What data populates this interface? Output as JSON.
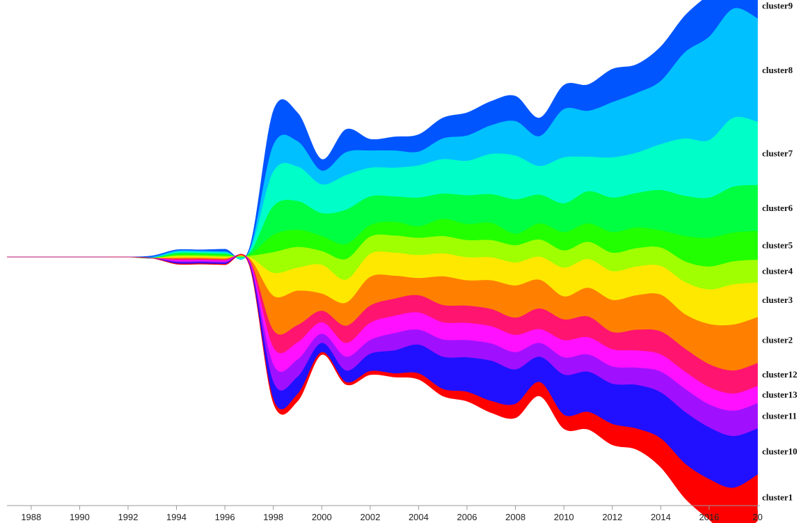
{
  "chart_data": {
    "type": "area",
    "subtype": "streamgraph",
    "title": "",
    "xlabel": "",
    "ylabel": "",
    "x": [
      1987,
      1988,
      1989,
      1990,
      1991,
      1992,
      1993,
      1994,
      1995,
      1996,
      1997,
      1998,
      1999,
      2000,
      2001,
      2002,
      2003,
      2004,
      2005,
      2006,
      2007,
      2008,
      2009,
      2010,
      2011,
      2012,
      2013,
      2014,
      2015,
      2016,
      2017,
      2018
    ],
    "xlim": [
      1987,
      2018.1
    ],
    "xtick_labels": [
      "1988",
      "1990",
      "1992",
      "1994",
      "1996",
      "1998",
      "2000",
      "2002",
      "2004",
      "2006",
      "2008",
      "2010",
      "2012",
      "2014",
      "2016",
      "20"
    ],
    "grid": false,
    "legend": "right-edge labels",
    "series": [
      {
        "name": "cluster9",
        "color": "#0055ff",
        "values": [
          0,
          0,
          0,
          0,
          0,
          0,
          0.1,
          0.1,
          0.1,
          0.2,
          0.2,
          3.0,
          2.5,
          1.0,
          2.0,
          1.0,
          1.2,
          1.5,
          1.8,
          2.0,
          2.1,
          2.2,
          1.6,
          2.1,
          2.3,
          2.9,
          2.5,
          3.0,
          3.2,
          3.7,
          3.0,
          2.2
        ]
      },
      {
        "name": "cluster8",
        "color": "#00c0ff",
        "values": [
          0,
          0,
          0,
          0,
          0,
          0,
          0.1,
          0.1,
          0.1,
          0.1,
          0.1,
          2.3,
          2.2,
          1.2,
          2.0,
          1.5,
          1.5,
          1.2,
          1.8,
          2.2,
          2.5,
          3.0,
          2.6,
          4.2,
          4.0,
          4.8,
          5.2,
          5.5,
          7.5,
          9.0,
          9.5,
          9.0
        ]
      },
      {
        "name": "cluster7",
        "color": "#00ffc8",
        "values": [
          0,
          0,
          0,
          0,
          0,
          0,
          0,
          0.1,
          0.1,
          0.1,
          0.1,
          3.0,
          3.0,
          2.5,
          3.0,
          2.5,
          2.5,
          2.8,
          3.0,
          3.0,
          3.5,
          3.8,
          2.5,
          4.0,
          3.0,
          3.5,
          3.5,
          4.0,
          5.0,
          5.0,
          6.0,
          5.5
        ]
      },
      {
        "name": "cluster6",
        "color": "#00ff40",
        "values": [
          0,
          0,
          0,
          0,
          0,
          0,
          0,
          0.1,
          0.1,
          0.1,
          0.1,
          2.5,
          2.5,
          2.0,
          3.0,
          2.5,
          2.2,
          2.5,
          2.2,
          2.5,
          2.5,
          3.0,
          2.5,
          2.5,
          2.8,
          3.0,
          3.0,
          3.5,
          3.5,
          3.5,
          4.0,
          4.0
        ]
      },
      {
        "name": "cluster5",
        "color": "#22ff00",
        "values": [
          0,
          0,
          0,
          0,
          0,
          0,
          0,
          0.1,
          0.1,
          0.1,
          0.1,
          1.5,
          1.5,
          1.3,
          1.3,
          1.0,
          1.2,
          1.0,
          1.5,
          1.4,
          1.5,
          1.0,
          1.4,
          1.6,
          1.6,
          1.8,
          1.8,
          1.5,
          2.2,
          2.5,
          2.5,
          2.5
        ]
      },
      {
        "name": "cluster4",
        "color": "#a0ff00",
        "values": [
          0,
          0,
          0,
          0,
          0,
          0,
          0,
          0.1,
          0.1,
          0.1,
          0.1,
          1.8,
          1.8,
          1.2,
          1.8,
          1.5,
          1.5,
          1.5,
          1.5,
          1.5,
          1.5,
          1.5,
          1.5,
          1.5,
          1.5,
          1.6,
          1.6,
          1.6,
          1.8,
          2.0,
          2.0,
          2.0
        ]
      },
      {
        "name": "cluster3",
        "color": "#ffe800",
        "values": [
          0,
          0,
          0,
          0,
          0,
          0,
          0,
          0.1,
          0.1,
          0.1,
          0.1,
          2.0,
          2.0,
          2.5,
          2.0,
          2.0,
          2.0,
          2.0,
          2.0,
          2.0,
          2.0,
          2.0,
          2.0,
          2.5,
          2.5,
          2.5,
          2.5,
          2.5,
          2.8,
          3.0,
          3.5,
          3.0
        ]
      },
      {
        "name": "cluster2",
        "color": "#ff8000",
        "values": [
          0,
          0,
          0,
          0,
          0,
          0,
          0,
          0.1,
          0.1,
          0.1,
          0.1,
          3.0,
          3.0,
          1.5,
          2.0,
          2.5,
          2.0,
          1.5,
          2.5,
          2.2,
          2.5,
          2.8,
          2.5,
          2.0,
          2.5,
          2.8,
          3.0,
          3.2,
          3.0,
          3.5,
          4.0,
          4.0
        ]
      },
      {
        "name": "cluster12",
        "color": "#ff1470",
        "values": [
          0,
          0,
          0,
          0,
          0,
          0,
          0,
          0.1,
          0.1,
          0.1,
          0.1,
          1.5,
          1.5,
          1.0,
          1.5,
          1.5,
          1.5,
          1.5,
          1.5,
          1.5,
          1.5,
          1.5,
          1.8,
          1.8,
          1.8,
          1.5,
          1.8,
          2.0,
          2.0,
          2.0,
          2.0,
          2.0
        ]
      },
      {
        "name": "cluster13",
        "color": "#ff10ff",
        "values": [
          0,
          0,
          0,
          0,
          0,
          0,
          0,
          0.1,
          0.1,
          0.1,
          0.1,
          1.5,
          1.5,
          1.0,
          1.2,
          1.5,
          1.5,
          1.5,
          1.5,
          1.5,
          1.5,
          1.5,
          1.2,
          1.5,
          1.5,
          1.5,
          1.5,
          1.5,
          1.5,
          1.5,
          1.5,
          1.5
        ]
      },
      {
        "name": "cluster11",
        "color": "#a010ff",
        "values": [
          0,
          0,
          0,
          0,
          0,
          0,
          0,
          0.1,
          0.1,
          0.1,
          0.1,
          1.5,
          1.5,
          0.8,
          1.2,
          1.2,
          1.5,
          1.3,
          1.5,
          1.5,
          1.5,
          1.5,
          1.2,
          1.5,
          1.5,
          1.5,
          1.5,
          1.8,
          2.0,
          2.0,
          2.2,
          2.2
        ]
      },
      {
        "name": "cluster10",
        "color": "#2010ff",
        "values": [
          0,
          0,
          0,
          0,
          0,
          0,
          0,
          0.1,
          0.1,
          0.1,
          0.1,
          1.5,
          1.5,
          0.8,
          1.0,
          1.5,
          2.0,
          2.5,
          2.8,
          3.0,
          3.5,
          3.0,
          2.2,
          3.5,
          3.5,
          3.5,
          3.8,
          4.0,
          4.5,
          4.5,
          4.5,
          4.0
        ]
      },
      {
        "name": "cluster1",
        "color": "#ff0000",
        "values": [
          0,
          0,
          0,
          0,
          0,
          0,
          0,
          0.05,
          0.05,
          0.05,
          0.05,
          0.3,
          0.6,
          0.2,
          0.2,
          0.3,
          0.3,
          0.5,
          0.6,
          0.8,
          1.0,
          1.2,
          1.2,
          1.2,
          1.5,
          1.8,
          1.8,
          2.5,
          3.0,
          3.5,
          4.5,
          4.0
        ]
      }
    ]
  }
}
